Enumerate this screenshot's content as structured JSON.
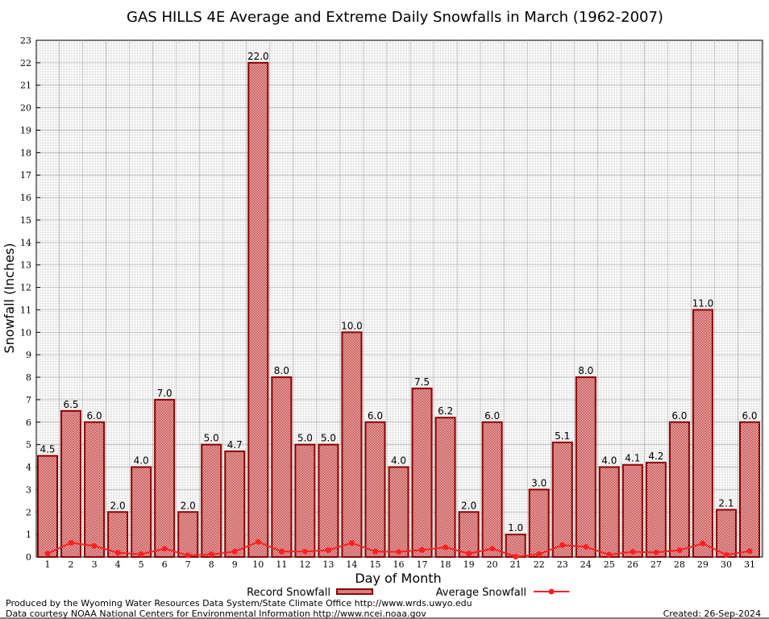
{
  "chart_data": {
    "type": "bar",
    "title": "GAS HILLS 4E Average and Extreme Daily Snowfalls in March (1962-2007)",
    "xlabel": "Day of Month",
    "ylabel": "Snowfall (Inches)",
    "ylim": [
      0,
      23
    ],
    "grid": true,
    "categories": [
      "1",
      "2",
      "3",
      "4",
      "5",
      "6",
      "7",
      "8",
      "9",
      "10",
      "11",
      "12",
      "13",
      "14",
      "15",
      "16",
      "17",
      "18",
      "19",
      "20",
      "21",
      "22",
      "23",
      "24",
      "25",
      "26",
      "27",
      "28",
      "29",
      "30",
      "31"
    ],
    "series": [
      {
        "name": "Record Snowfall",
        "type": "bar",
        "color": "#8b0000",
        "values": [
          4.5,
          6.5,
          6.0,
          2.0,
          4.0,
          7.0,
          2.0,
          5.0,
          4.7,
          22.0,
          8.0,
          5.0,
          5.0,
          10.0,
          6.0,
          4.0,
          7.5,
          6.2,
          2.0,
          6.0,
          1.0,
          3.0,
          5.1,
          8.0,
          4.0,
          4.1,
          4.2,
          6.0,
          11.0,
          2.1,
          6.0
        ],
        "labels": [
          "4.5",
          "6.5",
          "6.0",
          "2.0",
          "4.0",
          "7.0",
          "2.0",
          "5.0",
          "4.7",
          "22.0",
          "8.0",
          "5.0",
          "5.0",
          "10.0",
          "6.0",
          "4.0",
          "7.5",
          "6.2",
          "2.0",
          "6.0",
          "1.0",
          "3.0",
          "5.1",
          "8.0",
          "4.0",
          "4.1",
          "4.2",
          "6.0",
          "11.0",
          "2.1",
          "6.0"
        ]
      },
      {
        "name": "Average Snowfall",
        "type": "line",
        "color": "#ff2020",
        "values": [
          0.15,
          0.63,
          0.49,
          0.19,
          0.12,
          0.37,
          0.07,
          0.11,
          0.24,
          0.67,
          0.24,
          0.24,
          0.3,
          0.62,
          0.24,
          0.23,
          0.31,
          0.43,
          0.15,
          0.37,
          0.01,
          0.12,
          0.53,
          0.45,
          0.1,
          0.23,
          0.2,
          0.3,
          0.6,
          0.09,
          0.26
        ]
      }
    ],
    "yticks": [
      "0",
      "1",
      "2",
      "3",
      "4",
      "5",
      "6",
      "7",
      "8",
      "9",
      "10",
      "11",
      "12",
      "13",
      "14",
      "15",
      "16",
      "17",
      "18",
      "19",
      "20",
      "21",
      "22",
      "23"
    ],
    "legend": "bottom-center"
  },
  "footer": {
    "line1": "Produced by the Wyoming Water Resources Data System/State Climate Office http://www.wrds.uwyo.edu",
    "line2": "Data courtesy NOAA National Centers for Environmental Information http://www.ncei.noaa.gov",
    "created": "Created:  26-Sep-2024"
  }
}
